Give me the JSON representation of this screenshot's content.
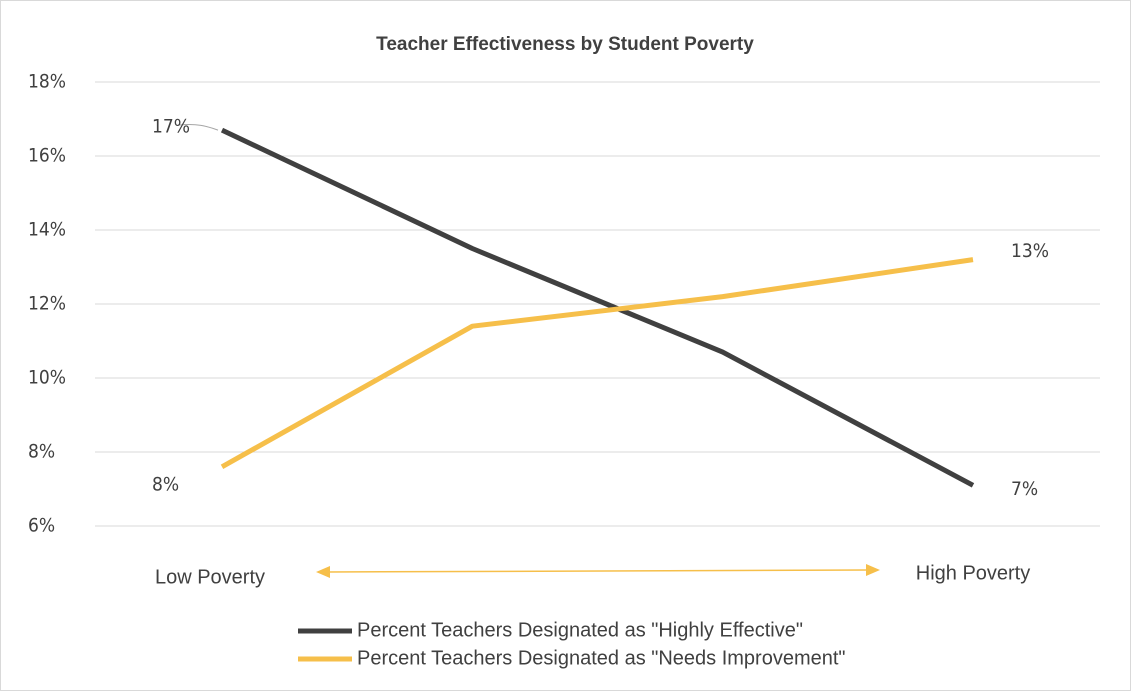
{
  "chart_data": {
    "type": "line",
    "title": "Teacher Effectiveness by Student Poverty",
    "categories": [
      null,
      null,
      null,
      null
    ],
    "series": [
      {
        "name": "Percent Teachers Designated as \"Highly Effective\"",
        "color": "#404040",
        "values": [
          16.7,
          13.5,
          10.7,
          7.1
        ],
        "value_labels": [
          "17%",
          null,
          null,
          "7%"
        ]
      },
      {
        "name": "Percent Teachers Designated as \"Needs Improvement\"",
        "color": "#f6bf4a",
        "values": [
          7.6,
          11.4,
          12.2,
          13.2
        ],
        "value_labels": [
          "8%",
          null,
          null,
          "13%"
        ]
      }
    ],
    "ylim": [
      6,
      18
    ],
    "yticks": [
      {
        "value": 6,
        "label": "6%"
      },
      {
        "value": 8,
        "label": "8%"
      },
      {
        "value": 10,
        "label": "10%"
      },
      {
        "value": 12,
        "label": "12%"
      },
      {
        "value": 14,
        "label": "14%"
      },
      {
        "value": 16,
        "label": "16%"
      },
      {
        "value": 18,
        "label": "18%"
      }
    ],
    "grid": true,
    "annotations": [
      "Low Poverty",
      "High Poverty"
    ],
    "legend": "bottom"
  }
}
